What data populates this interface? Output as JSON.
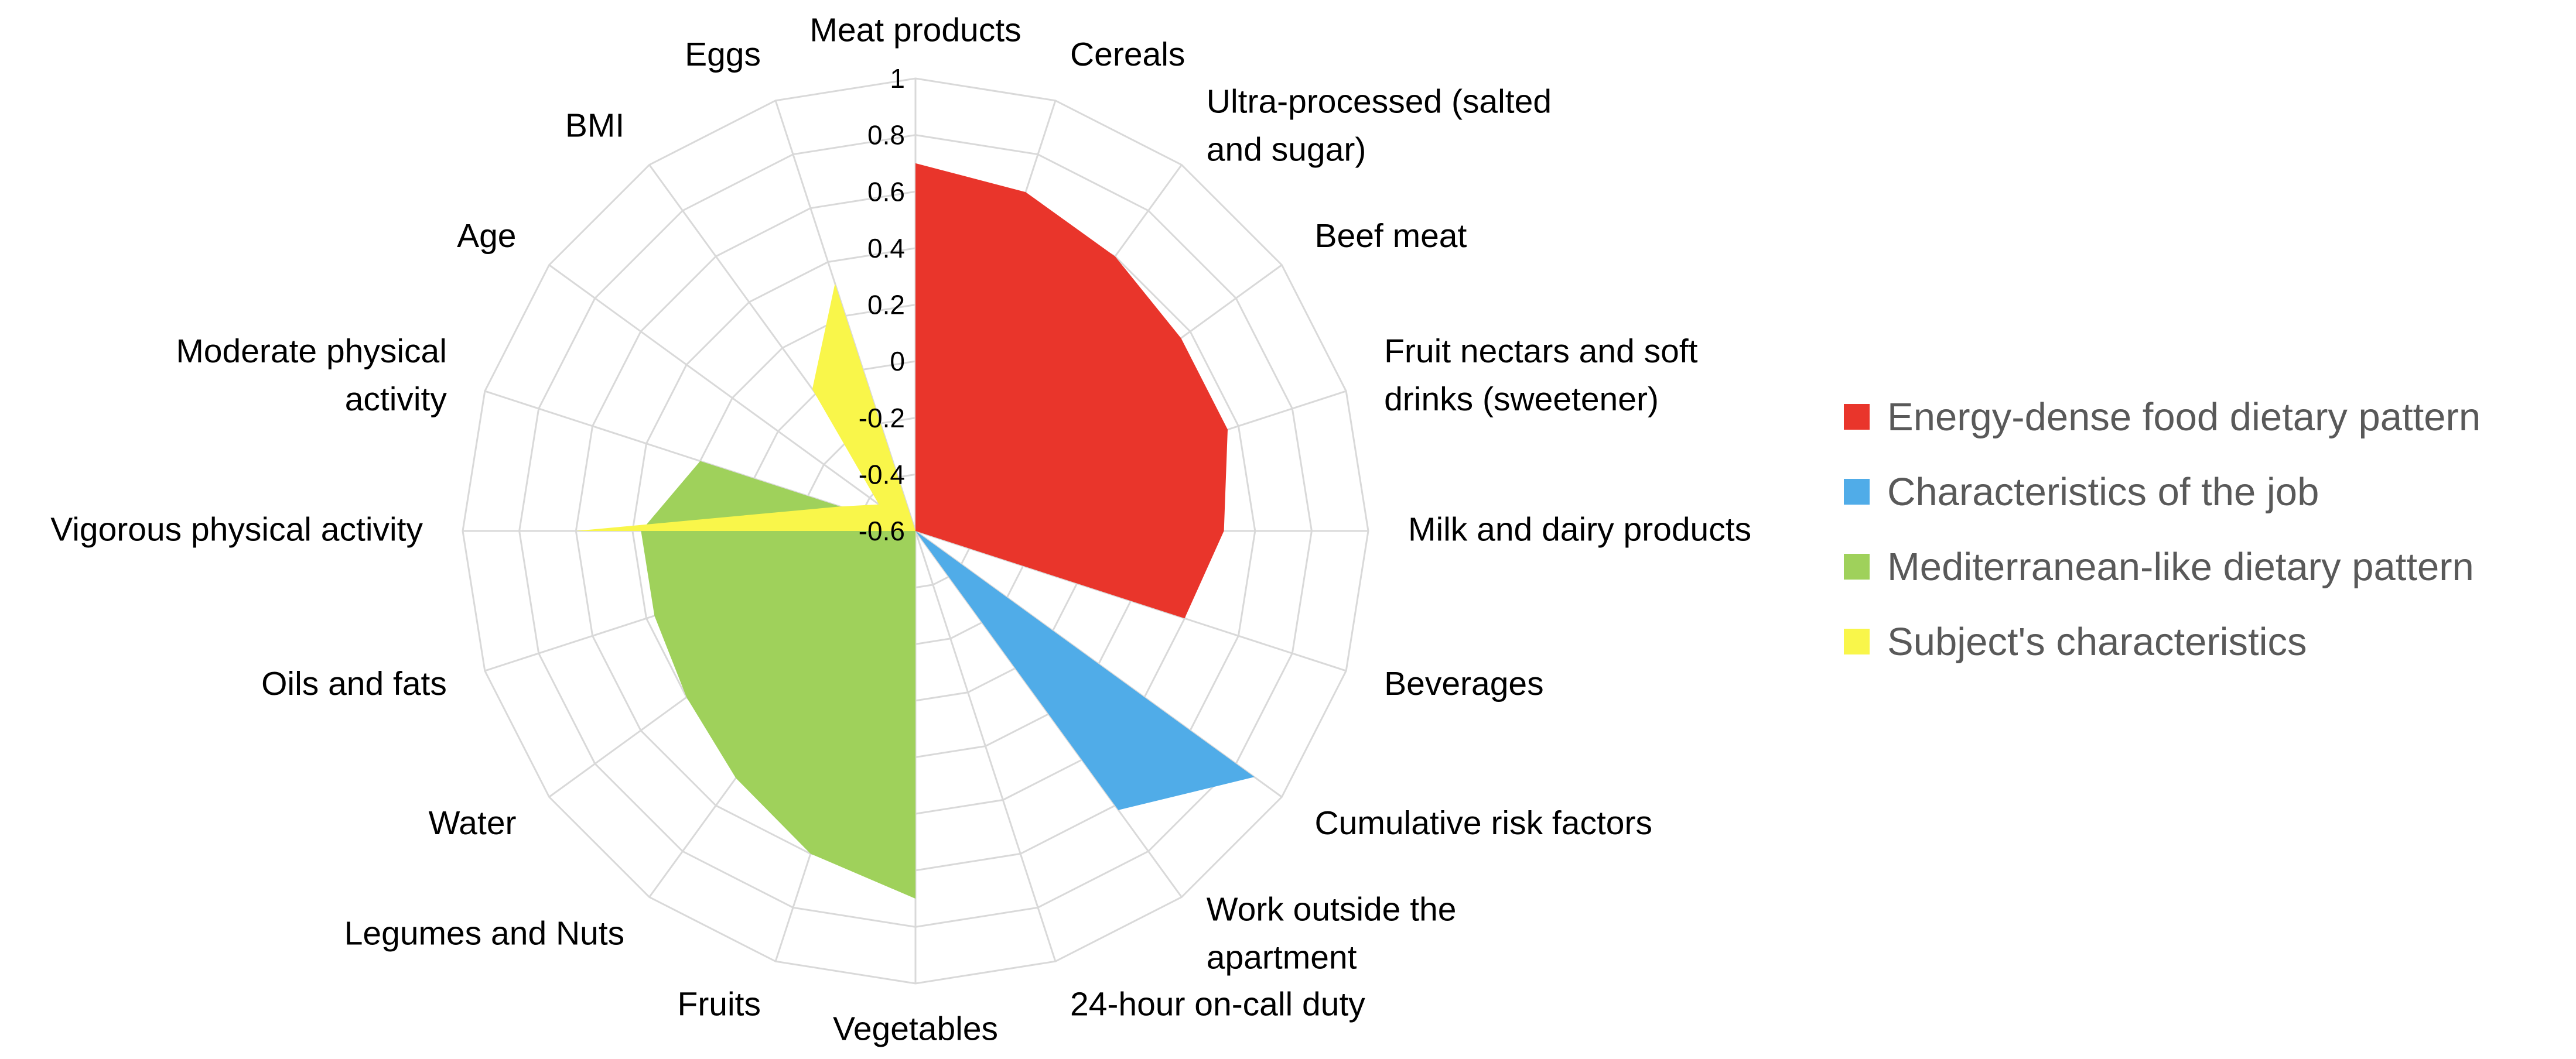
{
  "chart_data": {
    "type": "radar",
    "categories": [
      "Meat products",
      "Cereals",
      "Ultra-processed (salted and sugar)",
      "Beef meat",
      "Fruit nectars and soft drinks (sweetener)",
      "Milk and dairy products",
      "Beverages",
      "Cumulative risk factors",
      "Work outside the apartment",
      "24-hour on-call duty",
      "Vegetables",
      "Fruits",
      "Legumes and Nuts",
      "Water",
      "Oils and fats",
      "Vigorous physical activity",
      "Moderate physical activity",
      "Age",
      "BMI",
      "Eggs"
    ],
    "category_lines": [
      [
        "Meat products"
      ],
      [
        "Cereals"
      ],
      [
        "Ultra-processed (salted",
        "and sugar)"
      ],
      [
        "Beef meat"
      ],
      [
        "Fruit nectars and soft",
        "drinks (sweetener)"
      ],
      [
        "Milk and dairy products"
      ],
      [
        "Beverages"
      ],
      [
        "Cumulative risk factors"
      ],
      [
        "Work outside the",
        "apartment"
      ],
      [
        "24-hour on-call duty"
      ],
      [
        "Vegetables"
      ],
      [
        "Fruits"
      ],
      [
        "Legumes and Nuts"
      ],
      [
        "Water"
      ],
      [
        "Oils and fats"
      ],
      [
        "Vigorous physical activity"
      ],
      [
        "Moderate physical",
        "activity"
      ],
      [
        "Age"
      ],
      [
        "BMI"
      ],
      [
        "Eggs"
      ]
    ],
    "rlim": [
      -0.6,
      1
    ],
    "ticks": [
      "1",
      "0.8",
      "0.6",
      "0.4",
      "0.2",
      "0",
      "-0.2",
      "-0.4",
      "-0.6"
    ],
    "series": [
      {
        "name": "Energy-dense food dietary pattern",
        "color": "#e9352b",
        "values": [
          0.7,
          0.66,
          0.6,
          0.56,
          0.56,
          0.49,
          0.4,
          -0.6,
          -0.6,
          -0.6,
          -0.6,
          -0.6,
          -0.6,
          -0.6,
          -0.6,
          -0.6,
          -0.6,
          -0.6,
          -0.6,
          -0.6
        ]
      },
      {
        "name": "Characteristics of the job",
        "color": "#50ace8",
        "values": [
          -0.6,
          -0.6,
          -0.6,
          -0.6,
          -0.6,
          -0.6,
          -0.6,
          0.88,
          0.62,
          -0.6,
          -0.6,
          -0.6,
          -0.6,
          -0.6,
          -0.6,
          -0.6,
          -0.6,
          -0.6,
          -0.6,
          -0.6
        ]
      },
      {
        "name": "Mediterranean-like dietary pattern",
        "color": "#9fd15b",
        "values": [
          -0.6,
          -0.6,
          -0.6,
          -0.6,
          -0.6,
          -0.6,
          -0.6,
          -0.6,
          -0.6,
          -0.6,
          0.7,
          0.6,
          0.48,
          0.4,
          0.37,
          0.37,
          0.2,
          -0.6,
          -0.6,
          -0.6
        ]
      },
      {
        "name": "Subject's characteristics",
        "color": "#f9f64a",
        "values": [
          -0.6,
          -0.6,
          -0.6,
          -0.6,
          -0.6,
          -0.6,
          -0.6,
          -0.6,
          -0.6,
          -0.6,
          -0.6,
          -0.6,
          -0.6,
          -0.6,
          -0.6,
          0.6,
          -0.32,
          -0.44,
          0.02,
          0.32
        ]
      }
    ],
    "legend_position": "right"
  }
}
